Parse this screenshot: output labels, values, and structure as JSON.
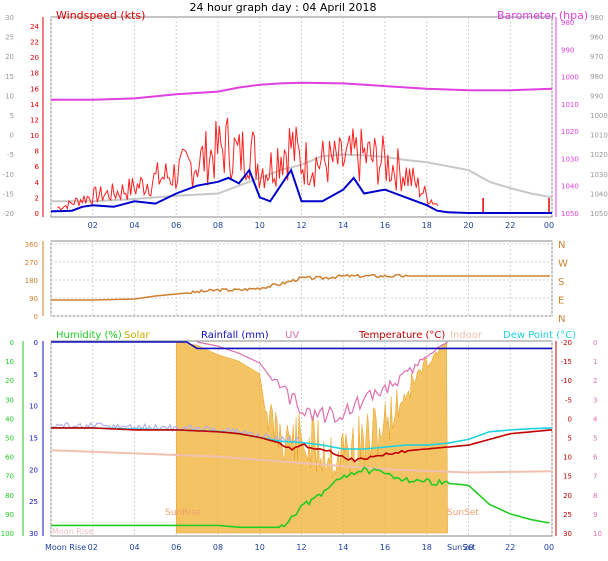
{
  "title": "24 hour graph day : 04 April 2018",
  "colors": {
    "wind_speed": "#e00000",
    "wind_gust_bar": "#ff2020",
    "wind_avg": "#0000cc",
    "barometer": "#e040e0",
    "baro_trace": "#c8c8c8",
    "wind_dir": "#d08030",
    "humidity": "#22cc22",
    "solar": "#f0b030",
    "rainfall": "#1010c0",
    "uv": "#e070b0",
    "temperature": "#c00000",
    "indoor": "#f0c0b0",
    "dewpoint": "#20d0e0",
    "sunrise_text": "#f0a070",
    "grid": "#d0d0d0"
  },
  "hour_labels": [
    "02",
    "04",
    "06",
    "08",
    "10",
    "12",
    "14",
    "16",
    "18",
    "20",
    "22",
    "00"
  ],
  "chart_data": [
    {
      "type": "line",
      "x_unit": "hour",
      "xlim": [
        0,
        24
      ],
      "left_axis": {
        "label": "Windspeed (kts)",
        "ticks": [
          0,
          2,
          4,
          6,
          8,
          10,
          12,
          14,
          16,
          18,
          20,
          22,
          24
        ],
        "outer_ticks": [
          -20,
          -15,
          -10,
          -5,
          0,
          5,
          10,
          15,
          20,
          25,
          30
        ],
        "ylim": [
          0,
          25
        ]
      },
      "right_axis": {
        "label": "Barometer (hpa)",
        "ticks": [
          980,
          990,
          1000,
          1010,
          1020,
          1030,
          1040,
          1050
        ],
        "outer_ticks": [
          980,
          960,
          970,
          980,
          990,
          1000,
          1010,
          1020,
          1030,
          1040,
          1050
        ],
        "ylim": [
          980,
          1050
        ]
      },
      "series": [
        {
          "name": "Barometer",
          "x": [
            0,
            2,
            4,
            6,
            8,
            9,
            10,
            11,
            12,
            14,
            16,
            18,
            20,
            22,
            24
          ],
          "y": [
            1008.5,
            1008.5,
            1008,
            1006.5,
            1005.5,
            1004,
            1003,
            1002.5,
            1002.3,
            1002.5,
            1003.5,
            1004.5,
            1005,
            1005,
            1004.5
          ]
        }
      ],
      "wind_avg": {
        "x": [
          0,
          1,
          1.5,
          2,
          3,
          4,
          5,
          6,
          7,
          8,
          8.5,
          9,
          9.5,
          10,
          10.5,
          11,
          11.5,
          12,
          13,
          14,
          14.5,
          15,
          16,
          17,
          18,
          18.5,
          19,
          20,
          21,
          22,
          23,
          24
        ],
        "y": [
          0.2,
          0.3,
          0.8,
          1.0,
          0.8,
          1.5,
          1.2,
          2.5,
          3.5,
          4,
          4.5,
          3.8,
          5.5,
          2,
          1.5,
          3.5,
          5.5,
          1.5,
          1.5,
          3,
          4.5,
          2.5,
          3,
          2,
          1,
          0.3,
          0.1,
          0,
          0,
          0,
          0,
          0
        ]
      },
      "wind_gust_envelope": {
        "x": [
          0.5,
          1.5,
          2,
          3,
          4,
          5,
          6,
          7,
          8,
          8.5,
          9,
          9.5,
          10,
          10.5,
          11,
          11.5,
          12,
          13,
          14,
          14.5,
          15,
          16,
          17,
          18,
          18.5,
          21,
          24
        ],
        "y": [
          1,
          2.5,
          3,
          3.5,
          4.5,
          6,
          7,
          9,
          11,
          12,
          10,
          12,
          8,
          8,
          11,
          12,
          9,
          9,
          9,
          10,
          10,
          9,
          7,
          3,
          1.5,
          1.5,
          1.5
        ]
      },
      "baro_trace": {
        "x": [
          0,
          2,
          4,
          6,
          8,
          9,
          10,
          11,
          12,
          13,
          14,
          15,
          16,
          17,
          18,
          19,
          20,
          21,
          22,
          23,
          24
        ],
        "y": [
          1.5,
          1.5,
          1.8,
          2.2,
          2.5,
          3.5,
          4.5,
          5.5,
          6.2,
          7.3,
          7.5,
          7.4,
          7.2,
          6.8,
          6.5,
          6,
          5.5,
          4,
          3.2,
          2.5,
          2
        ]
      }
    },
    {
      "type": "line",
      "x_unit": "hour",
      "xlim": [
        0,
        24
      ],
      "ylim": [
        0,
        360
      ],
      "left_ticks": [
        0,
        90,
        180,
        270,
        360
      ],
      "right_labels": [
        "N",
        "W",
        "S",
        "E",
        "N"
      ],
      "series": [
        {
          "name": "Wind direction",
          "x": [
            0,
            2,
            4,
            5,
            6,
            7,
            8,
            9,
            10,
            11,
            12,
            13,
            14,
            15,
            16,
            17,
            18,
            20,
            22,
            24
          ],
          "y": [
            80,
            80,
            85,
            100,
            110,
            120,
            130,
            130,
            140,
            160,
            190,
            190,
            200,
            200,
            200,
            200,
            200,
            200,
            200,
            200
          ]
        }
      ]
    },
    {
      "type": "line",
      "x_unit": "hour",
      "xlim": [
        0,
        24
      ],
      "left_axis_humidity": {
        "label": "Humidity (%)",
        "ticks": [
          0,
          10,
          20,
          30,
          40,
          50,
          60,
          70,
          80,
          90,
          100
        ]
      },
      "left_axis_temp": {
        "ticks": [
          0,
          5,
          10,
          15,
          20,
          25,
          30
        ]
      },
      "right_axis": {
        "ticks": [
          -20,
          -15,
          -10,
          -5,
          0,
          5,
          10,
          15,
          20,
          25,
          30
        ],
        "outer_ticks": [
          0,
          1,
          2,
          3,
          4,
          5,
          6,
          7,
          8,
          9,
          10
        ]
      },
      "legend": [
        "Humidity (%)",
        "Solar",
        "Rainfall (mm)",
        "UV",
        "Temperature (°C)",
        "Indoor",
        "Dew Point (°C)"
      ],
      "series": [
        {
          "name": "Humidity (%)",
          "x": [
            0,
            2,
            4,
            6,
            8,
            9,
            10,
            11,
            11.5,
            12,
            13,
            13.5,
            14,
            15,
            16,
            17,
            18,
            19,
            20,
            20.5,
            21,
            22,
            23,
            24
          ],
          "y": [
            96,
            96,
            96,
            96,
            96,
            97,
            97,
            97,
            92,
            86,
            80,
            74,
            70,
            67,
            69,
            72,
            73,
            74,
            75,
            80,
            85,
            90,
            93,
            95
          ]
        },
        {
          "name": "Temperature (°C)",
          "x": [
            0,
            2,
            4,
            6,
            8,
            9,
            10,
            11,
            11.5,
            12,
            13,
            14,
            14.5,
            15,
            16,
            17,
            18,
            19,
            20,
            21,
            22,
            23,
            24
          ],
          "y": [
            2.5,
            2.5,
            3,
            3,
            3.5,
            4,
            5,
            6.5,
            8,
            7,
            8,
            10,
            11,
            10.5,
            9.5,
            8.5,
            8,
            7.5,
            7,
            5.5,
            4,
            3.5,
            3
          ]
        },
        {
          "name": "Dew Point (°C)",
          "x": [
            0,
            2,
            4,
            6,
            8,
            9,
            10,
            11,
            12,
            13,
            14,
            15,
            16,
            17,
            18,
            19,
            20,
            21,
            22,
            23,
            24
          ],
          "y": [
            2.5,
            2.5,
            2.8,
            3,
            3.4,
            4,
            5,
            6,
            6.3,
            7,
            8,
            8,
            7.5,
            7,
            7,
            6.5,
            5.5,
            3.5,
            3,
            2.7,
            2.5
          ]
        },
        {
          "name": "Indoor",
          "x": [
            0,
            4,
            8,
            12,
            16,
            20,
            24
          ],
          "y": [
            17,
            17.5,
            18,
            19,
            20,
            20.5,
            20.3
          ]
        },
        {
          "name": "Rainfall (mm)",
          "x": [
            0,
            6.5,
            7,
            12,
            24
          ],
          "y": [
            0,
            0,
            1,
            1,
            1
          ]
        }
      ],
      "solar": {
        "x": [
          6,
          7,
          8,
          9,
          10,
          10.5,
          11,
          12,
          13,
          14,
          15,
          16,
          17,
          18,
          19
        ],
        "y": [
          0,
          0.5,
          2,
          3,
          5,
          16,
          18,
          20,
          21,
          22,
          20,
          16,
          10,
          4,
          0
        ]
      },
      "uv": {
        "x": [
          7,
          8,
          9,
          10,
          11,
          12,
          13,
          14,
          15,
          16,
          17,
          18,
          19
        ],
        "y": [
          0,
          0.3,
          0.8,
          1.5,
          3.5,
          5,
          5.5,
          5.3,
          4.5,
          3.5,
          2.5,
          1,
          0
        ]
      },
      "annotations": [
        "SunRise",
        "SunSet",
        "Moon Rise",
        "Moon Rise",
        "SunSet"
      ]
    }
  ]
}
